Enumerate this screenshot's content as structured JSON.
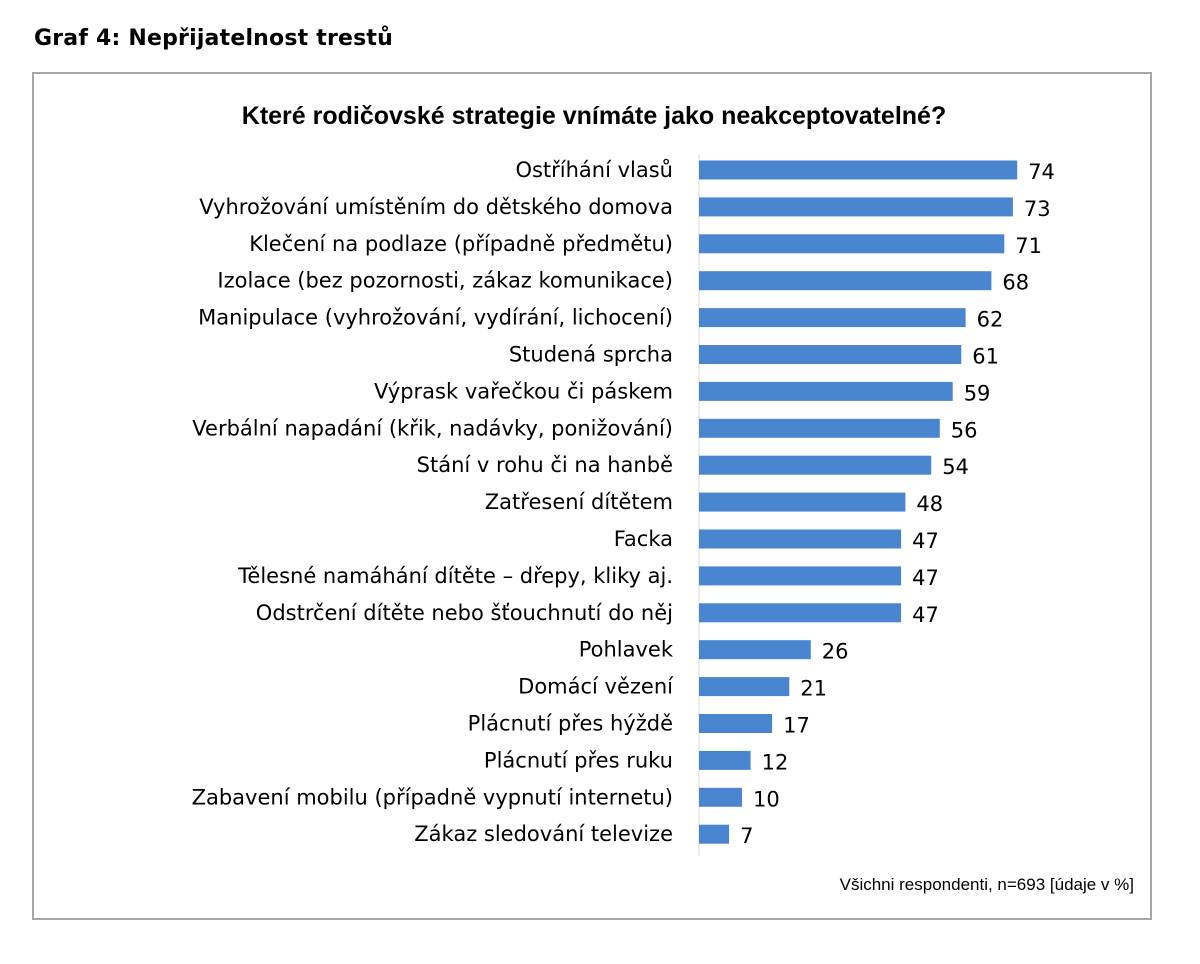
{
  "heading": "Graf 4: Nepřijatelnost trestů",
  "chart_data": {
    "type": "bar",
    "orientation": "horizontal",
    "title": "Které rodičovské strategie vnímáte jako neakceptovatelné?",
    "note": "Všichni respondenti, n=693 [údaje v %]",
    "bar_color": "#4a86d0",
    "xlim": [
      0,
      100
    ],
    "categories": [
      "Ostříhání vlasů",
      "Vyhrožování umístěním do dětského domova",
      "Klečení na podlaze (případně předmětu)",
      "Izolace (bez pozornosti, zákaz komunikace)",
      "Manipulace (vyhrožování, vydírání, lichocení)",
      "Studená sprcha",
      "Výprask vařečkou či páskem",
      "Verbální napadání (křik, nadávky, ponižování)",
      "Stání v rohu či na hanbě",
      "Zatřesení dítětem",
      "Facka",
      "Tělesné namáhání dítěte – dřepy, kliky aj.",
      "Odstrčení dítěte nebo šťouchnutí do něj",
      "Pohlavek",
      "Domácí vězení",
      "Plácnutí přes hýždě",
      "Plácnutí přes ruku",
      "Zabavení mobilu (případně vypnutí internetu)",
      "Zákaz sledování televize"
    ],
    "values": [
      74,
      73,
      71,
      68,
      62,
      61,
      59,
      56,
      54,
      48,
      47,
      47,
      47,
      26,
      21,
      17,
      12,
      10,
      7
    ]
  }
}
